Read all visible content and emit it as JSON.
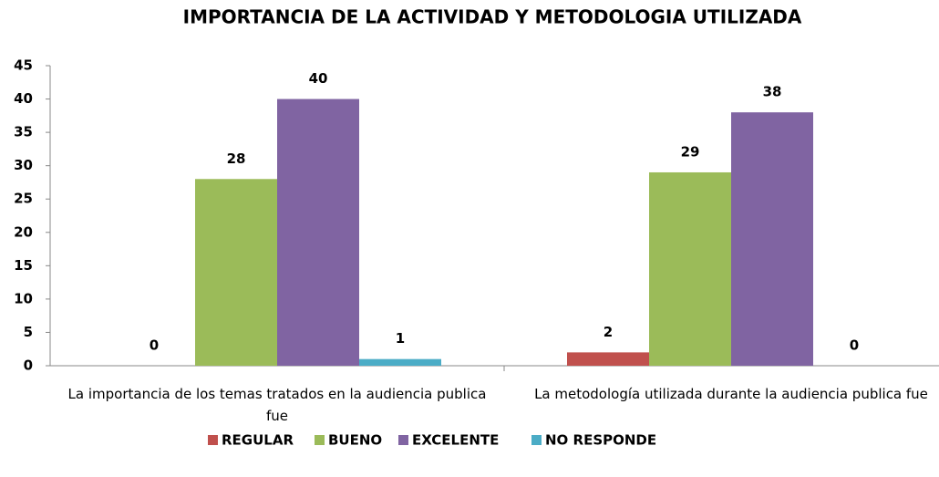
{
  "chart_data": {
    "type": "bar",
    "title": "IMPORTANCIA DE LA ACTIVIDAD Y METODOLOGIA UTILIZADA",
    "categories": [
      "La importancia de los temas tratados en la audiencia publica fue",
      "La metodología utilizada durante la audiencia publica fue"
    ],
    "series": [
      {
        "name": "REGULAR",
        "color": "#c0504d",
        "values": [
          0,
          2
        ]
      },
      {
        "name": "BUENO",
        "color": "#9bbb59",
        "values": [
          28,
          29
        ]
      },
      {
        "name": "EXCELENTE",
        "color": "#8064a2",
        "values": [
          40,
          38
        ]
      },
      {
        "name": "NO RESPONDE",
        "color": "#4bacc6",
        "values": [
          1,
          0
        ]
      }
    ],
    "ylim": [
      0,
      45
    ],
    "yticks": [
      0,
      5,
      10,
      15,
      20,
      25,
      30,
      35,
      40,
      45
    ],
    "grid": false,
    "legend": "bottom"
  }
}
